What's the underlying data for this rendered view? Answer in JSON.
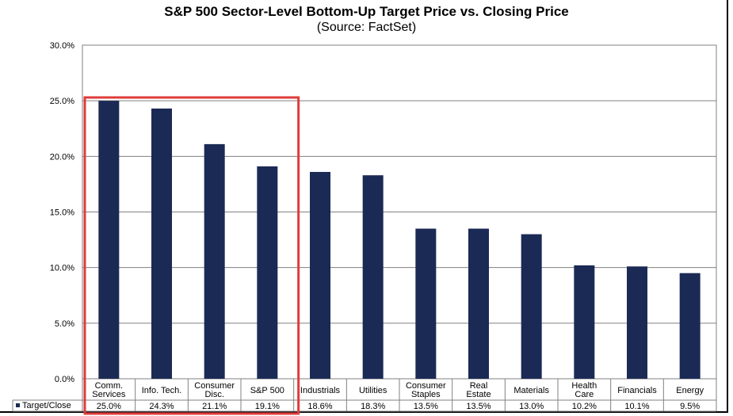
{
  "chart_data": {
    "type": "bar",
    "title": "S&P 500 Sector-Level Bottom-Up Target Price vs. Closing Price",
    "subtitle": "(Source: FactSet)",
    "xlabel": "",
    "ylabel": "",
    "ylim": [
      0,
      30
    ],
    "yticks": [
      "0.0%",
      "5.0%",
      "10.0%",
      "15.0%",
      "20.0%",
      "25.0%",
      "30.0%"
    ],
    "grid": true,
    "categories": [
      [
        "Comm.",
        "Services"
      ],
      [
        "Info. Tech."
      ],
      [
        "Consumer",
        "Disc."
      ],
      [
        "S&P 500"
      ],
      [
        "Industrials"
      ],
      [
        "Utilities"
      ],
      [
        "Consumer",
        "Staples"
      ],
      [
        "Real",
        "Estate"
      ],
      [
        "Materials"
      ],
      [
        "Health",
        "Care"
      ],
      [
        "Financials"
      ],
      [
        "Energy"
      ]
    ],
    "series": [
      {
        "name": "Target/Close",
        "color": "#1b2a55",
        "values": [
          25.0,
          24.3,
          21.1,
          19.1,
          18.6,
          18.3,
          13.5,
          13.5,
          13.0,
          10.2,
          10.1,
          9.5
        ],
        "labels": [
          "25.0%",
          "24.3%",
          "21.1%",
          "19.1%",
          "18.6%",
          "18.3%",
          "13.5%",
          "13.5%",
          "13.0%",
          "10.2%",
          "10.1%",
          "9.5%"
        ]
      }
    ],
    "data_table": true,
    "highlight": {
      "first_index": 0,
      "last_index": 3,
      "color": "#e03c3c"
    }
  }
}
